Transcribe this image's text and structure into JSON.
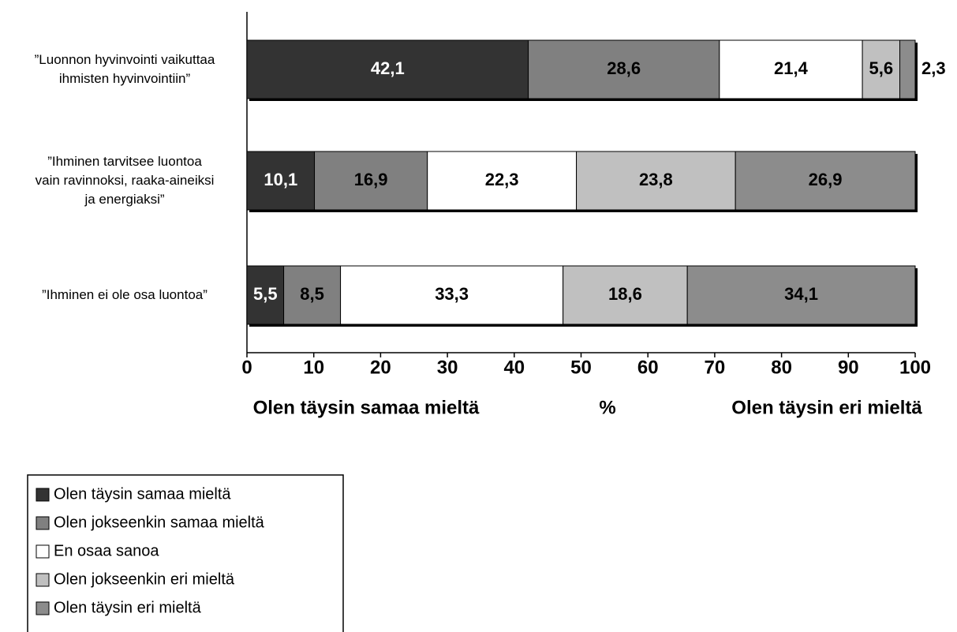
{
  "chart_data": {
    "type": "stacked_bar_horizontal",
    "categories": [
      "”Luonnon hyvinvointi vaikuttaa\nihmisten hyvinvointiin”",
      "”Ihminen tarvitsee luontoa\nvain ravinnoksi, raaka-aineiksi\nja energiaksi”",
      "”Ihminen ei ole osa luontoa”"
    ],
    "series": [
      {
        "name": "Olen täysin samaa mieltä",
        "color": "#333333",
        "values": [
          42.1,
          10.1,
          5.5
        ],
        "value_labels": [
          "42,1",
          "10,1",
          "5,5"
        ]
      },
      {
        "name": "Olen jokseenkin samaa mieltä",
        "color": "#808080",
        "values": [
          28.6,
          16.9,
          8.5
        ],
        "value_labels": [
          "28,6",
          "16,9",
          "8,5"
        ]
      },
      {
        "name": "En osaa sanoa",
        "color": "#ffffff",
        "values": [
          21.4,
          22.3,
          33.3
        ],
        "value_labels": [
          "21,4",
          "22,3",
          "33,3"
        ]
      },
      {
        "name": "Olen jokseenkin eri mieltä",
        "color": "#c0c0c0",
        "values": [
          5.6,
          23.8,
          18.6
        ],
        "value_labels": [
          "5,6",
          "23,8",
          "18,6"
        ]
      },
      {
        "name": "Olen täysin eri mieltä",
        "color": "#8c8c8c",
        "values": [
          2.3,
          26.9,
          34.1
        ],
        "value_labels": [
          "2,3",
          "26,9",
          "34,1"
        ]
      }
    ],
    "xlim": [
      0,
      100
    ],
    "xticks": [
      0,
      10,
      20,
      30,
      40,
      50,
      60,
      70,
      80,
      90,
      100
    ],
    "x_label": "%",
    "x_label_left": "Olen täysin samaa mieltä",
    "x_label_right": "Olen täysin eri mieltä",
    "legend": "bottom-left"
  }
}
